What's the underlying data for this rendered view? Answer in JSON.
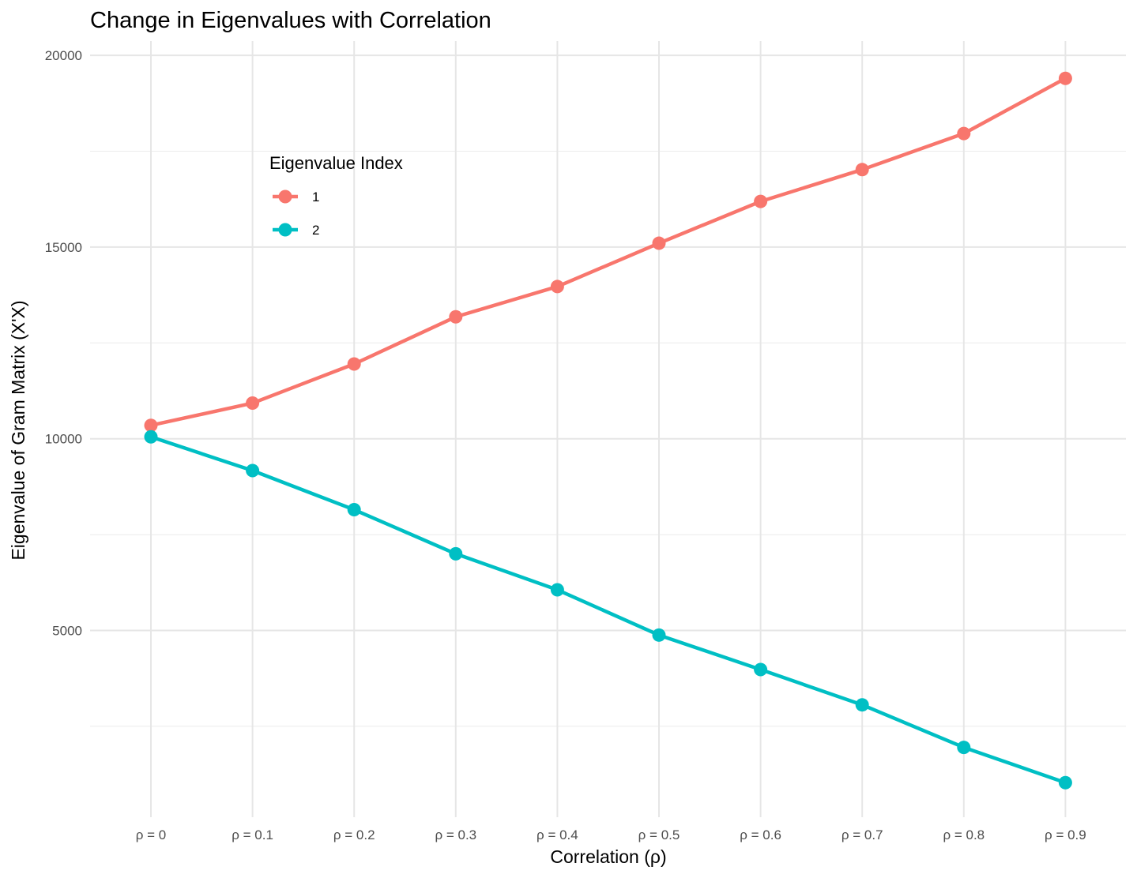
{
  "chart_data": {
    "type": "line",
    "title": "Change in Eigenvalues with Correlation",
    "xlabel": "Correlation (ρ)",
    "ylabel": "Eigenvalue of Gram Matrix (X'X)",
    "categories": [
      "ρ = 0",
      "ρ = 0.1",
      "ρ = 0.2",
      "ρ = 0.3",
      "ρ = 0.4",
      "ρ = 0.5",
      "ρ = 0.6",
      "ρ = 0.7",
      "ρ = 0.8",
      "ρ = 0.9"
    ],
    "y_ticks": [
      5000,
      10000,
      15000,
      20000
    ],
    "y_tick_labels": [
      "5000",
      "10000",
      "15000",
      "20000"
    ],
    "ylim": [
      0,
      20000
    ],
    "grid": true,
    "legend": {
      "title": "Eigenvalue Index",
      "placement": "inside-top-left"
    },
    "series": [
      {
        "name": "1",
        "color": "#F8766D",
        "values": [
          10350,
          10930,
          11950,
          13180,
          13970,
          15100,
          16190,
          17020,
          17960,
          19400
        ]
      },
      {
        "name": "2",
        "color": "#00BFC4",
        "values": [
          10050,
          9170,
          8150,
          7000,
          6060,
          4880,
          3980,
          3060,
          1950,
          1030
        ]
      }
    ]
  }
}
